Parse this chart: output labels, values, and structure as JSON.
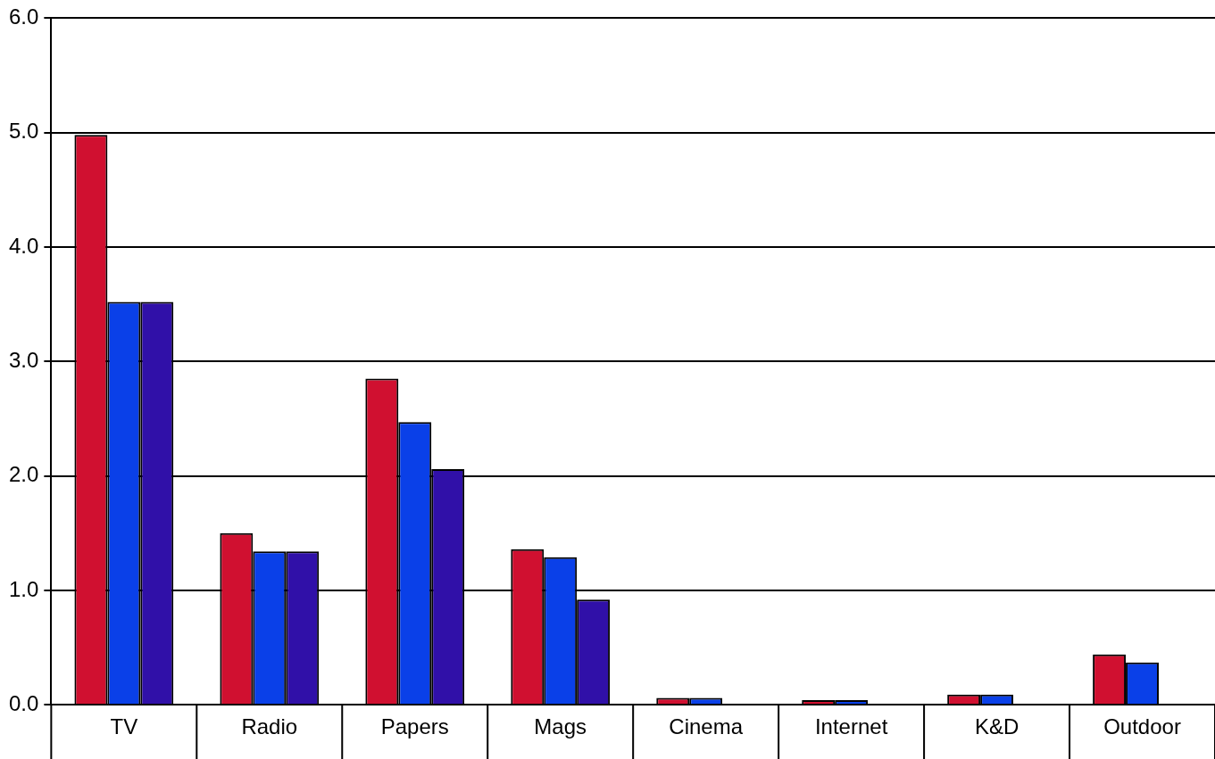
{
  "chart_data": {
    "type": "bar",
    "categories": [
      "TV",
      "Radio",
      "Papers",
      "Mags",
      "Cinema",
      "Internet",
      "K&D",
      "Outdoor"
    ],
    "series": [
      {
        "color": "#d01030",
        "values": [
          4.98,
          1.5,
          2.85,
          1.36,
          0.06,
          0.04,
          0.09,
          0.44
        ]
      },
      {
        "color": "#0a40e8",
        "values": [
          3.52,
          1.34,
          2.47,
          1.29,
          0.06,
          0.04,
          0.09,
          0.37
        ]
      },
      {
        "color": "#3010a8",
        "values": [
          3.52,
          1.34,
          2.06,
          0.92,
          null,
          null,
          null,
          null
        ]
      }
    ],
    "ylim": [
      0,
      6
    ],
    "yticks": [
      {
        "value": 0,
        "label": "0.0"
      },
      {
        "value": 1,
        "label": "1.0"
      },
      {
        "value": 2,
        "label": "2.0"
      },
      {
        "value": 3,
        "label": "3.0"
      },
      {
        "value": 4,
        "label": "4.0"
      },
      {
        "value": 5,
        "label": "5.0"
      },
      {
        "value": 6,
        "label": "6.0"
      }
    ],
    "grid": "y",
    "legend": false
  }
}
